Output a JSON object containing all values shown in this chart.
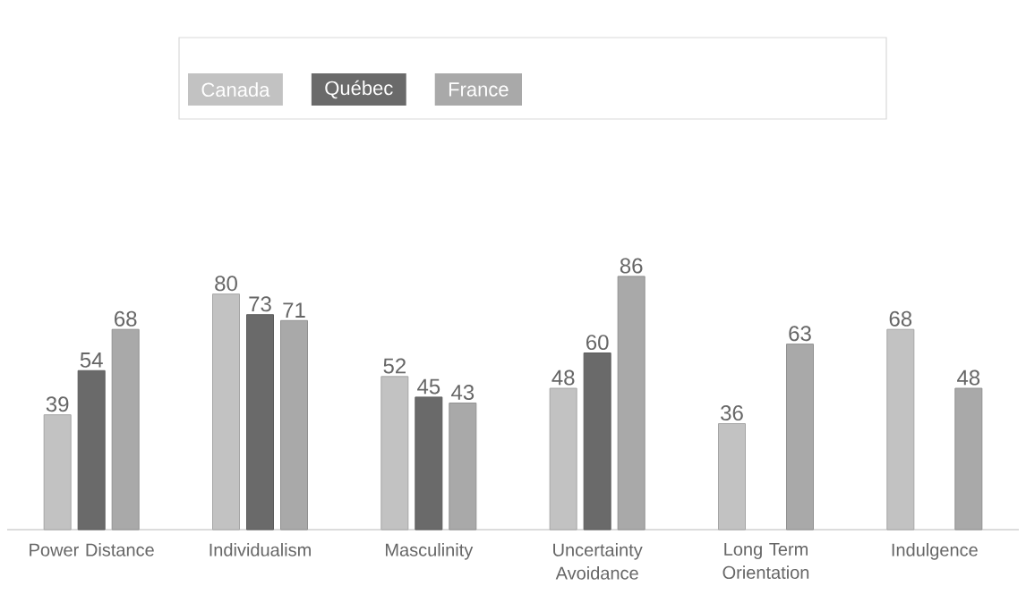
{
  "chart_data": {
    "type": "bar",
    "categories": [
      "Power Distance",
      "Individualism",
      "Masculinity",
      "Uncertainty Avoidance",
      "Long Term Orientation",
      "Indulgence"
    ],
    "series": [
      {
        "name": "Canada",
        "color": "#c2c2c2",
        "values": [
          39,
          80,
          52,
          48,
          36,
          68
        ]
      },
      {
        "name": "Québec",
        "color": "#6a6a6a",
        "values": [
          54,
          73,
          45,
          60,
          null,
          null
        ]
      },
      {
        "name": "France",
        "color": "#a9a9a9",
        "values": [
          68,
          71,
          43,
          86,
          63,
          48
        ]
      }
    ],
    "data_labels": true,
    "legend": "top"
  }
}
